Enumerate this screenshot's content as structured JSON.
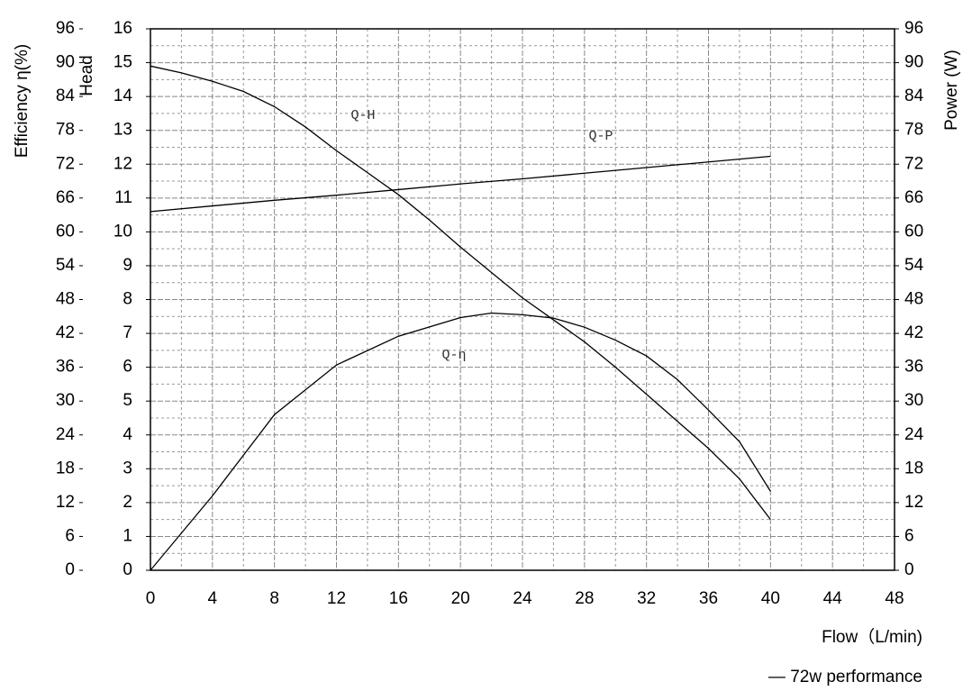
{
  "chart_data": {
    "type": "line",
    "x_label": "Flow（L/min)",
    "y_label": "Head",
    "y2_label": "Power (W)",
    "y3_label": "Efficiency η(%)",
    "caption": "— 72w performance",
    "xlim": [
      0,
      48
    ],
    "xticks": [
      0,
      4,
      8,
      12,
      16,
      20,
      24,
      28,
      32,
      36,
      40,
      44,
      48
    ],
    "ylim": [
      0,
      16
    ],
    "yticks": [
      0,
      1,
      2,
      3,
      4,
      5,
      6,
      7,
      8,
      9,
      10,
      11,
      12,
      13,
      14,
      15,
      16
    ],
    "y2lim": [
      0,
      96
    ],
    "y2ticks": [
      0,
      6,
      12,
      18,
      24,
      30,
      36,
      42,
      48,
      54,
      60,
      66,
      72,
      78,
      84,
      90,
      96
    ],
    "y3lim": [
      0,
      96
    ],
    "y3ticks": [
      0,
      6,
      12,
      18,
      24,
      30,
      36,
      42,
      48,
      54,
      60,
      66,
      72,
      78,
      84,
      90,
      96
    ],
    "grid": true,
    "series": [
      {
        "name": "Q-H",
        "color": "#000000",
        "axis": "y",
        "x": [
          0,
          2,
          4,
          6,
          8,
          10,
          12,
          14,
          16,
          18,
          20,
          22,
          24,
          26,
          28,
          30,
          32,
          34,
          36,
          38,
          40
        ],
        "values": [
          14.9,
          14.7,
          14.45,
          14.15,
          13.7,
          13.1,
          12.4,
          11.75,
          11.1,
          10.35,
          9.55,
          8.8,
          8.05,
          7.4,
          6.75,
          6.0,
          5.2,
          4.4,
          3.6,
          2.7,
          1.5
        ]
      },
      {
        "name": "Q-P",
        "color": "#000000",
        "axis": "y2",
        "x": [
          0,
          4,
          8,
          12,
          16,
          20,
          24,
          28,
          32,
          36,
          40
        ],
        "values": [
          63.6,
          64.6,
          65.6,
          66.5,
          67.5,
          68.5,
          69.4,
          70.4,
          71.4,
          72.4,
          73.4
        ]
      },
      {
        "name": "Q-η",
        "color": "#000000",
        "axis": "y3",
        "x": [
          0,
          4,
          8,
          12,
          16,
          20,
          22,
          24,
          26,
          28,
          30,
          32,
          34,
          36,
          38,
          40
        ],
        "values": [
          0,
          13.2,
          27.6,
          36.4,
          41.5,
          44.8,
          45.6,
          45.3,
          44.7,
          43.1,
          40.8,
          38,
          33.8,
          28.4,
          22.8,
          14
        ]
      }
    ]
  }
}
